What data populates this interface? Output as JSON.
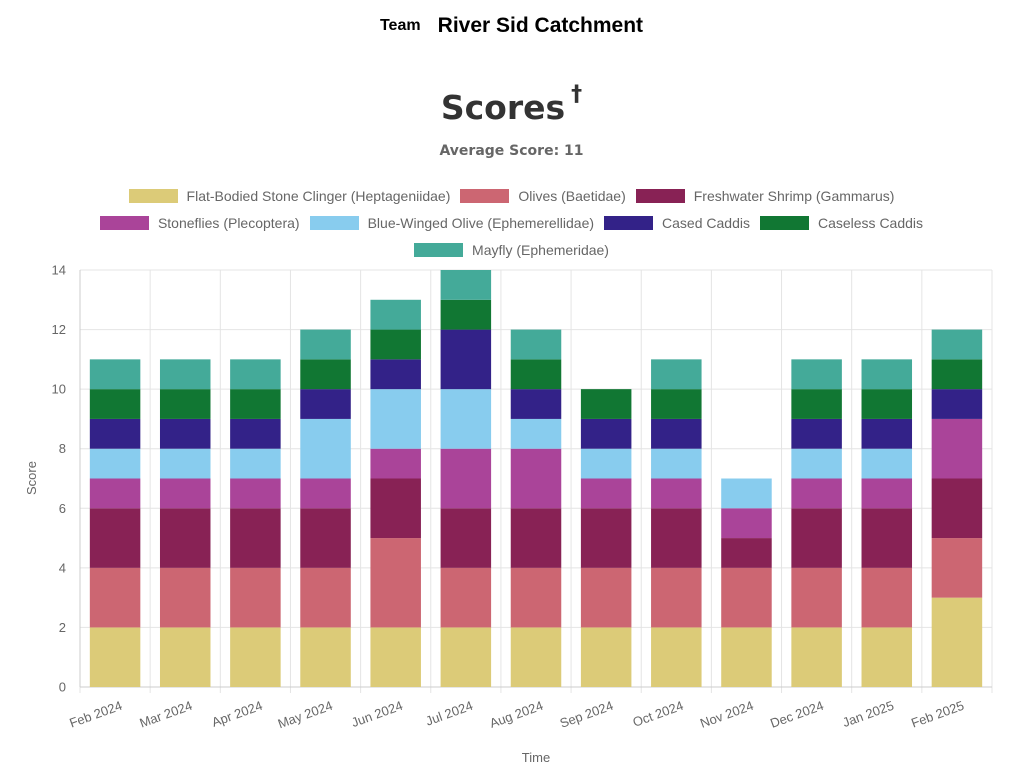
{
  "header": {
    "team_label": "Team",
    "team_name": "River Sid Catchment"
  },
  "chart_data": {
    "type": "bar",
    "stacked": true,
    "title": "Scores",
    "title_mark": "†",
    "subtitle": "Average Score: 11",
    "xlabel": "Time",
    "ylabel": "Score",
    "ylim": [
      0,
      14
    ],
    "yticks": [
      0,
      2,
      4,
      6,
      8,
      10,
      12,
      14
    ],
    "grid": true,
    "legend_position": "top",
    "categories": [
      "Feb 2024",
      "Mar 2024",
      "Apr 2024",
      "May 2024",
      "Jun 2024",
      "Jul 2024",
      "Aug 2024",
      "Sep 2024",
      "Oct 2024",
      "Nov 2024",
      "Dec 2024",
      "Jan 2025",
      "Feb 2025"
    ],
    "series": [
      {
        "name": "Flat-Bodied Stone Clinger (Heptageniidae)",
        "color": "#dccb78",
        "values": [
          2,
          2,
          2,
          2,
          2,
          2,
          2,
          2,
          2,
          2,
          2,
          2,
          3
        ]
      },
      {
        "name": "Olives (Baetidae)",
        "color": "#cc6672",
        "values": [
          2,
          2,
          2,
          2,
          3,
          2,
          2,
          2,
          2,
          2,
          2,
          2,
          2
        ]
      },
      {
        "name": "Freshwater Shrimp (Gammarus)",
        "color": "#882255",
        "values": [
          2,
          2,
          2,
          2,
          2,
          2,
          2,
          2,
          2,
          1,
          2,
          2,
          2
        ]
      },
      {
        "name": "Stoneflies (Plecoptera)",
        "color": "#aa4499",
        "values": [
          1,
          1,
          1,
          1,
          1,
          2,
          2,
          1,
          1,
          1,
          1,
          1,
          2
        ]
      },
      {
        "name": "Blue-Winged Olive (Ephemerellidae)",
        "color": "#88ccee",
        "values": [
          1,
          1,
          1,
          2,
          2,
          2,
          1,
          1,
          1,
          1,
          1,
          1,
          0
        ]
      },
      {
        "name": "Cased Caddis",
        "color": "#332288",
        "values": [
          1,
          1,
          1,
          1,
          1,
          2,
          1,
          1,
          1,
          0,
          1,
          1,
          1
        ]
      },
      {
        "name": "Caseless Caddis",
        "color": "#117733",
        "values": [
          1,
          1,
          1,
          1,
          1,
          1,
          1,
          1,
          1,
          0,
          1,
          1,
          1
        ]
      },
      {
        "name": "Mayfly (Ephemeridae)",
        "color": "#44aa99",
        "values": [
          1,
          1,
          1,
          1,
          1,
          1,
          1,
          0,
          1,
          0,
          1,
          1,
          1
        ]
      }
    ]
  }
}
